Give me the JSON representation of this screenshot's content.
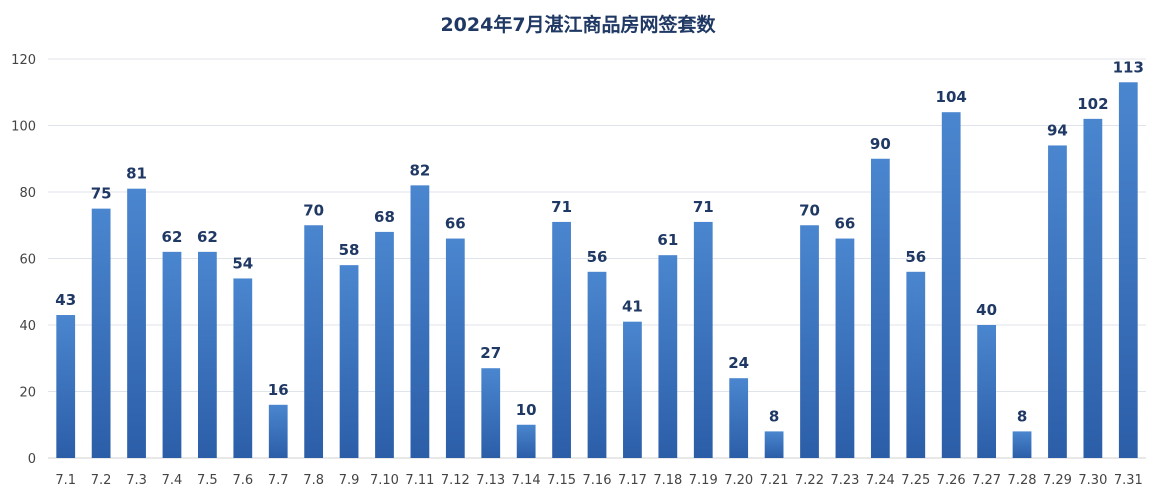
{
  "chart_data": {
    "type": "bar",
    "title": "2024年7月湛江商品房网签套数",
    "xlabel": "",
    "ylabel": "",
    "ylim": [
      0,
      120
    ],
    "yticks": [
      0,
      20,
      40,
      60,
      80,
      100,
      120
    ],
    "grid": true,
    "legend": "none",
    "categories": [
      "7.1",
      "7.2",
      "7.3",
      "7.4",
      "7.5",
      "7.6",
      "7.7",
      "7.8",
      "7.9",
      "7.10",
      "7.11",
      "7.12",
      "7.13",
      "7.14",
      "7.15",
      "7.16",
      "7.17",
      "7.18",
      "7.19",
      "7.20",
      "7.21",
      "7.22",
      "7.23",
      "7.24",
      "7.25",
      "7.26",
      "7.27",
      "7.28",
      "7.29",
      "7.30",
      "7.31"
    ],
    "values": [
      43,
      75,
      81,
      62,
      62,
      54,
      16,
      70,
      58,
      68,
      82,
      66,
      27,
      10,
      71,
      56,
      41,
      61,
      71,
      24,
      8,
      70,
      66,
      90,
      56,
      104,
      40,
      8,
      94,
      102,
      113
    ],
    "colors": {
      "bar_top": "#4a86cf",
      "bar_bottom": "#2c5ea8",
      "label": "#1f3864"
    }
  }
}
